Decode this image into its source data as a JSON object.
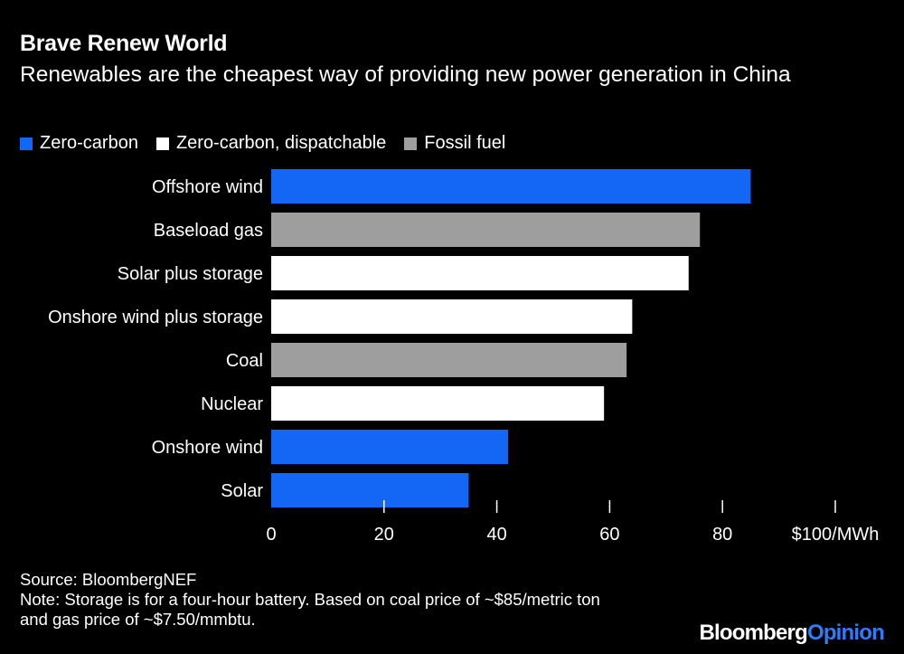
{
  "header": {
    "title": "Brave Renew World",
    "subtitle": "Renewables are the cheapest way of providing new power generation in China"
  },
  "legend": {
    "items": [
      {
        "label": "Zero-carbon",
        "color": "#1466f4"
      },
      {
        "label": "Zero-carbon, dispatchable",
        "color": "#ffffff"
      },
      {
        "label": "Fossil fuel",
        "color": "#9e9e9e"
      }
    ]
  },
  "chart_data": {
    "type": "bar",
    "orientation": "horizontal",
    "title": "Brave Renew World",
    "subtitle": "Renewables are the cheapest way of providing new power generation in China",
    "categories": [
      "Offshore wind",
      "Baseload gas",
      "Solar plus storage",
      "Onshore wind plus storage",
      "Coal",
      "Nuclear",
      "Onshore wind",
      "Solar"
    ],
    "values": [
      85,
      76,
      74,
      64,
      63,
      59,
      42,
      35
    ],
    "groups": [
      "Zero-carbon",
      "Fossil fuel",
      "Zero-carbon, dispatchable",
      "Zero-carbon, dispatchable",
      "Fossil fuel",
      "Zero-carbon, dispatchable",
      "Zero-carbon",
      "Zero-carbon"
    ],
    "group_colors": {
      "Zero-carbon": "#1466f4",
      "Zero-carbon, dispatchable": "#ffffff",
      "Fossil fuel": "#9e9e9e"
    },
    "xlim": [
      0,
      100
    ],
    "xticks": [
      0,
      20,
      40,
      60,
      80,
      100
    ],
    "xtick_labels": [
      "0",
      "20",
      "40",
      "60",
      "80",
      "$100/MWh"
    ],
    "xlabel": "",
    "ylabel": "",
    "grid": false,
    "legend_position": "top-left"
  },
  "footer": {
    "source": "Source: BloombergNEF",
    "note_line1": "Note: Storage is for a four-hour battery. Based on coal price of ~$85/metric ton",
    "note_line2": "and gas price of ~$7.50/mmbtu."
  },
  "branding": {
    "part1": "Bloomberg",
    "part2": "Opinion"
  }
}
